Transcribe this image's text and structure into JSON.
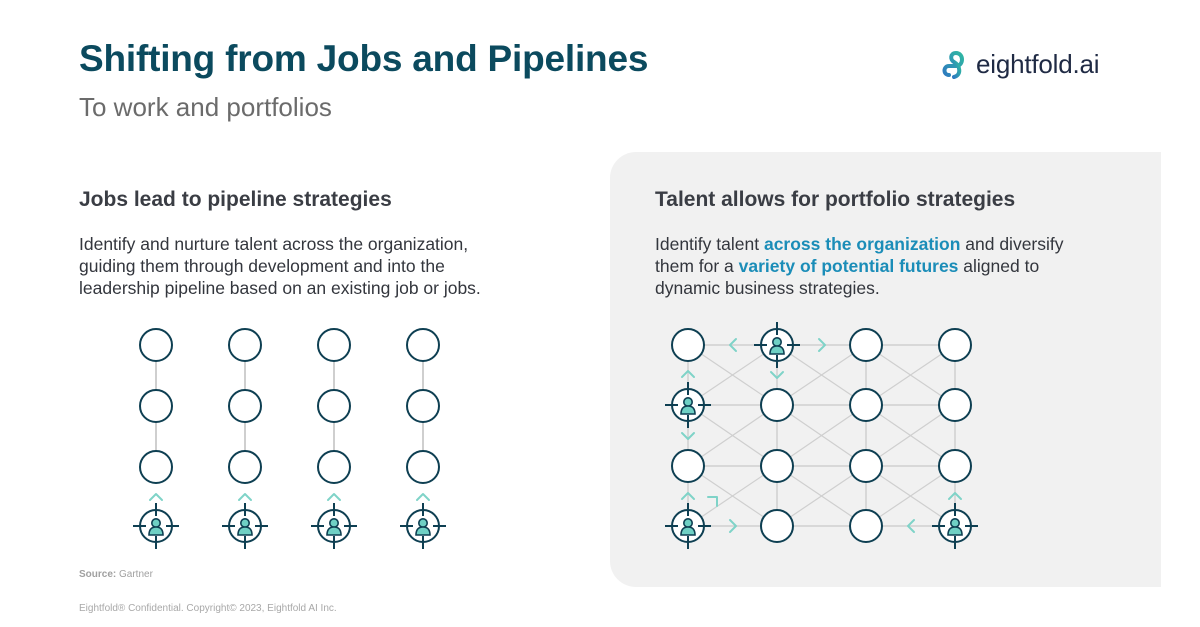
{
  "header": {
    "title": "Shifting from Jobs and Pipelines",
    "subtitle": "To work and portfolios"
  },
  "brand": {
    "logo_text": "eightfold.ai",
    "logo_icon": "eightfold-infinity-icon"
  },
  "left_section": {
    "heading": "Jobs lead to pipeline strategies",
    "body": "Identify and nurture talent across the organization, guiding them through development and into the leadership pipeline based on an existing job or jobs."
  },
  "right_section": {
    "heading": "Talent allows for portfolio strategies",
    "body_part1": "Identify talent ",
    "body_highlight1": "across the organization",
    "body_part2": " and diversify them for a ",
    "body_highlight2": "variety of potential futures",
    "body_part3": " aligned to dynamic business strategies."
  },
  "source": {
    "label": "Source:",
    "value": "Gartner"
  },
  "footer": {
    "text": "Eightfold® Confidential. Copyright© 2023, Eightfold AI Inc."
  },
  "colors": {
    "title": "#0b4a5e",
    "node_stroke": "#0e3f52",
    "person_fill": "#6fd0c4",
    "arrow": "#7fd3c8",
    "grid_line": "#cfcfcf",
    "highlight": "#1b8db8",
    "panel_bg": "#f1f1f1"
  },
  "diagrams": {
    "pipeline": {
      "columns": 4,
      "empty_nodes_per_column": 3,
      "talent_node": "bottom",
      "arrow": "up"
    },
    "portfolio": {
      "rows": 4,
      "columns": 4,
      "talent_nodes": [
        [
          0,
          1
        ],
        [
          1,
          0
        ],
        [
          3,
          0
        ],
        [
          3,
          3
        ]
      ],
      "arrow_icon": "chevron-icon",
      "talent_icon": "target-person-icon"
    }
  }
}
